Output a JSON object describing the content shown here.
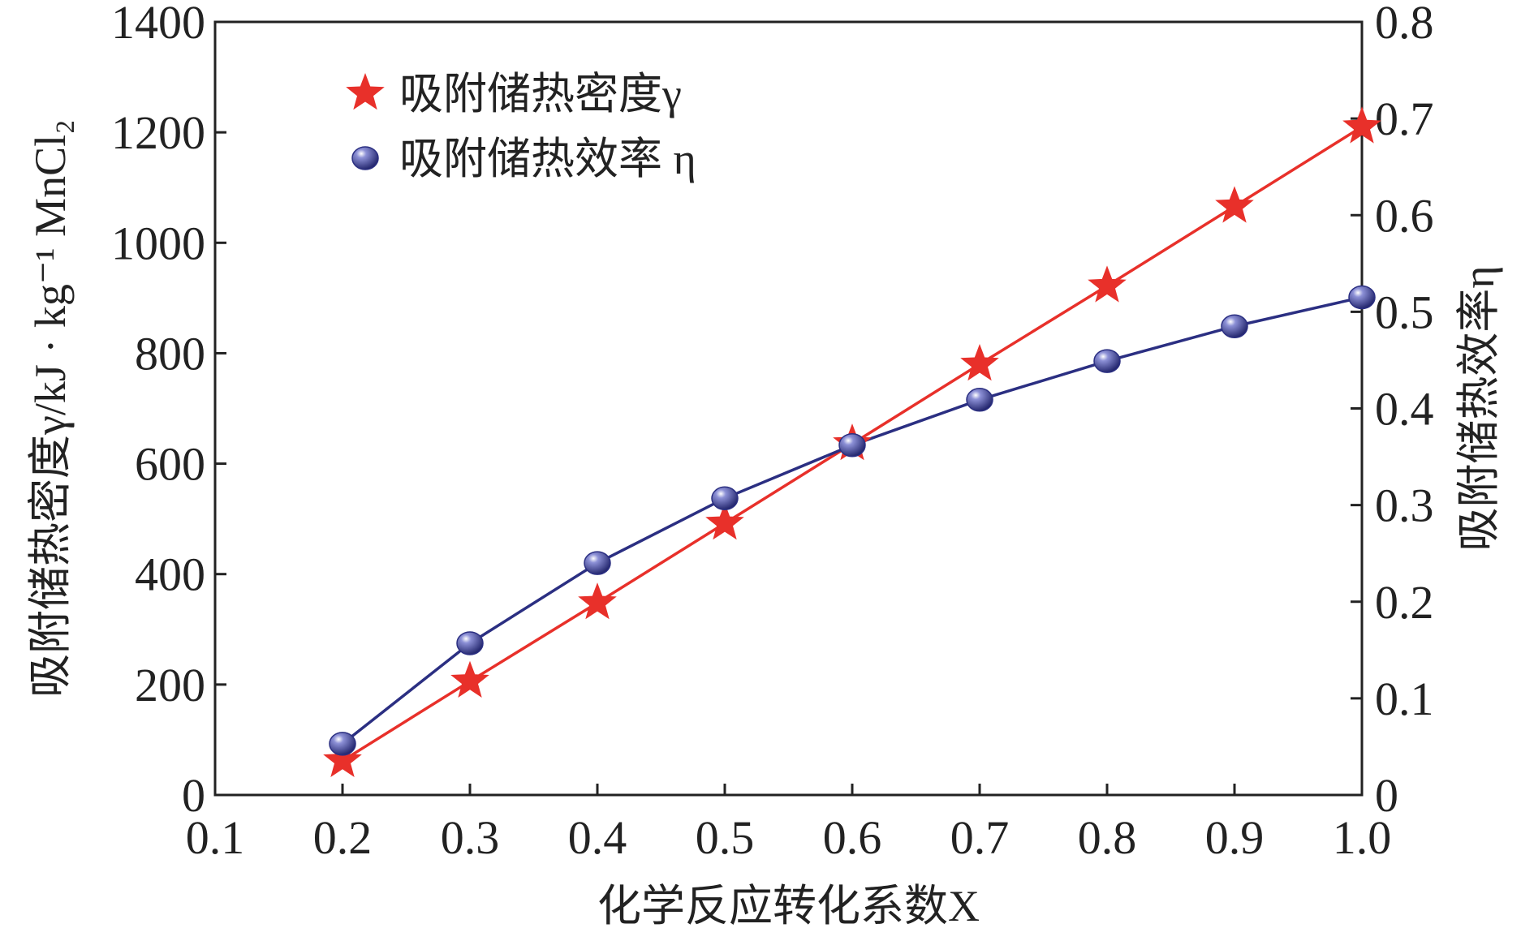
{
  "chart_data": {
    "type": "line",
    "x_axis": {
      "label": "化学反应转化系数X",
      "range": [
        0.1,
        1.0
      ],
      "tick_values": [
        0.1,
        0.2,
        0.3,
        0.4,
        0.5,
        0.6,
        0.7,
        0.8,
        0.9,
        1.0
      ],
      "tick_labels": [
        "0.1",
        "0.2",
        "0.3",
        "0.4",
        "0.5",
        "0.6",
        "0.7",
        "0.8",
        "0.9",
        "1.0"
      ]
    },
    "y_axis_left": {
      "label": "吸附储热密度γ/kJ · kg⁻¹ MnCl₂",
      "range": [
        0,
        1400
      ],
      "tick_values": [
        0,
        200,
        400,
        600,
        800,
        1000,
        1200,
        1400
      ],
      "tick_labels": [
        "0",
        "200",
        "400",
        "600",
        "800",
        "1000",
        "1200",
        "1400"
      ]
    },
    "y_axis_right": {
      "label": "吸附储热效率η",
      "range": [
        0,
        0.8
      ],
      "tick_values": [
        0,
        0.1,
        0.2,
        0.3,
        0.4,
        0.5,
        0.6,
        0.7,
        0.8
      ],
      "tick_labels": [
        "0",
        "0.1",
        "0.2",
        "0.3",
        "0.4",
        "0.5",
        "0.6",
        "0.7",
        "0.8"
      ]
    },
    "grid": false,
    "legend_position": "top-left",
    "series": [
      {
        "name": "吸附储热密度γ",
        "axis": "left",
        "marker": "star",
        "color": "#e8302a",
        "x": [
          0.2,
          0.3,
          0.4,
          0.5,
          0.6,
          0.7,
          0.8,
          0.9,
          1.0
        ],
        "y": [
          62,
          206,
          348,
          492,
          636,
          780,
          922,
          1066,
          1210
        ]
      },
      {
        "name": "吸附储热效率 η",
        "axis": "right",
        "marker": "circle",
        "color": "#2b2f82",
        "x": [
          0.2,
          0.3,
          0.4,
          0.5,
          0.6,
          0.7,
          0.8,
          0.9,
          1.0
        ],
        "y": [
          0.053,
          0.157,
          0.24,
          0.307,
          0.362,
          0.409,
          0.449,
          0.485,
          0.515
        ]
      }
    ]
  }
}
